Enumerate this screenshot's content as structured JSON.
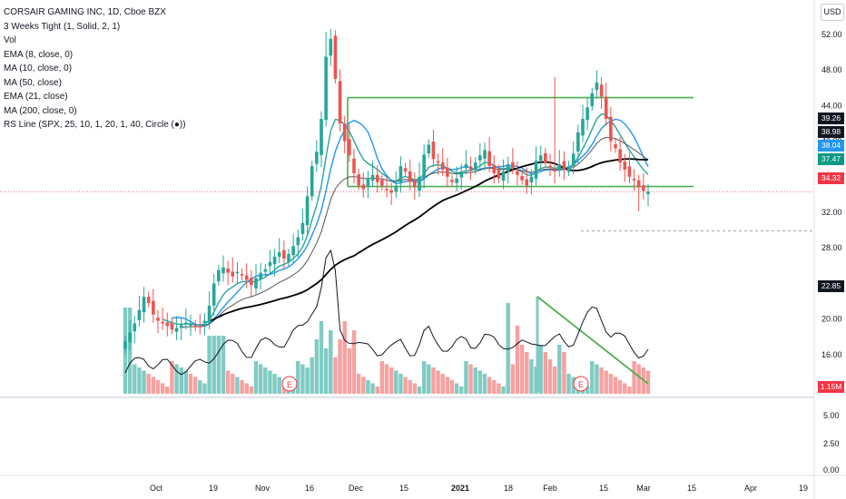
{
  "legend": {
    "symbol": "CORSAIR GAMING INC, 1D, Cboe BZX",
    "lines": [
      "3 Weeks Tight (1, Solid, 2, 1)",
      "Vol",
      "EMA (8, close, 0)",
      "MA (10, close, 0)",
      "MA (50, close)",
      "EMA (21, close)",
      "MA (200, close, 0)",
      "RS Line (SPX, 25, 10, 1, 20, 1, 40, Circle (●))"
    ]
  },
  "currency_button": "USD",
  "price_axis": {
    "ticks": [
      "52.00",
      "48.00",
      "44.00",
      "40.00",
      "36.00",
      "32.00",
      "28.00",
      "24.00",
      "20.00",
      "16.00",
      "12.00"
    ],
    "tags": [
      {
        "text": "39.26",
        "color": "#131722"
      },
      {
        "text": "38.98",
        "color": "#131722"
      },
      {
        "text": "38.04",
        "color": "#2196f3"
      },
      {
        "text": "37.47",
        "color": "#089981"
      },
      {
        "text": "34.32",
        "color": "#f23645"
      },
      {
        "text": "22.85",
        "color": "#131722"
      },
      {
        "text": "1.15M",
        "color": "#f23645"
      }
    ]
  },
  "lower_axis": {
    "ticks": [
      "5.00",
      "2.50",
      "0.00"
    ]
  },
  "time_axis": {
    "ticks": [
      "Oct",
      "19",
      "Nov",
      "16",
      "Dec",
      "15",
      "2021",
      "18",
      "Feb",
      "15",
      "Mar",
      "15",
      "Apr",
      "19"
    ]
  },
  "earnings_markers": [
    "E",
    "E"
  ],
  "colors": {
    "up": "#26a69a",
    "down": "#ef5350",
    "vol_up": "#80cbc4",
    "vol_down": "#f7a1a1",
    "ema8": "#26a69a",
    "ma10": "#2196f3",
    "ma50": "#000000",
    "rs": "#131722",
    "channel": "#4caf50"
  },
  "chart_data": {
    "type": "candlestick",
    "title": "CORSAIR GAMING INC, 1D, Cboe BZX",
    "ylim": [
      10,
      54
    ],
    "y_ticks": [
      52,
      48,
      44,
      40,
      36,
      32,
      28,
      24,
      20,
      16,
      12
    ],
    "x_ticks": [
      "Oct",
      "19",
      "Nov",
      "16",
      "Dec",
      "15",
      "2021",
      "18",
      "Feb",
      "15",
      "Mar",
      "15",
      "Apr",
      "19"
    ],
    "close_path": [
      17.5,
      18.5,
      19.5,
      21,
      22.5,
      21.8,
      20.5,
      19.8,
      19.5,
      19.2,
      18.8,
      19.0,
      19.3,
      19.6,
      19.4,
      19.1,
      19.2,
      19.8,
      21.5,
      24,
      25.5,
      25.8,
      25.2,
      24.8,
      25.3,
      24.9,
      24.4,
      23.8,
      24.6,
      25.2,
      25.6,
      26.4,
      27.0,
      27.5,
      26.8,
      27.3,
      28.2,
      29.2,
      30.8,
      33.8,
      37.2,
      38.8,
      42.5,
      49.5,
      51.5,
      47.0,
      42.0,
      40.0,
      38.4,
      36.4,
      35.0,
      34.6,
      35.8,
      36.2,
      35.4,
      35.0,
      34.6,
      34.2,
      35.0,
      37.2,
      36.6,
      35.4,
      34.8,
      36.0,
      38.5,
      39.6,
      38.0,
      37.6,
      36.8,
      36.0,
      35.4,
      35.8,
      36.6,
      37.4,
      36.8,
      37.6,
      38.4,
      39.0,
      37.2,
      36.4,
      35.8,
      36.6,
      37.4,
      37.0,
      36.2,
      35.6,
      35.0,
      36.0,
      37.8,
      38.4,
      37.6,
      37.0,
      36.6,
      37.4,
      36.8,
      37.2,
      38.6,
      41.0,
      42.5,
      43.8,
      45.4,
      46.6,
      45.0,
      42.5,
      40.0,
      39.2,
      37.6,
      36.8,
      36.0,
      35.6,
      34.8,
      34.4,
      34.32
    ],
    "volume_bars": 108,
    "rs_line_last": 22.85,
    "lower_pane_ticks": [
      5.0,
      2.5,
      0.0
    ],
    "last_price": 34.32,
    "last_volume": "1.15M"
  }
}
